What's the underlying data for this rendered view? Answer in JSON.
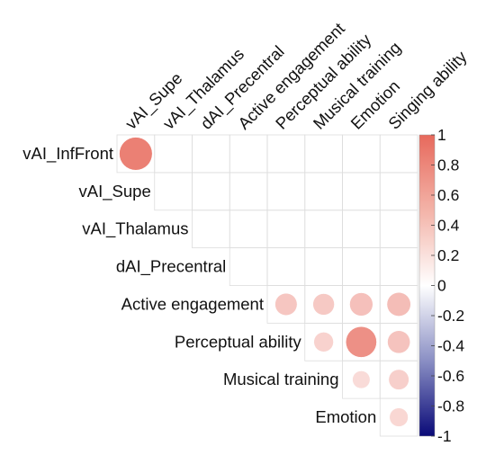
{
  "chart_data": {
    "type": "heatmap",
    "style": "corrplot-circle-upper-triangular",
    "row_labels": [
      "vAI_InfFront",
      "vAI_Supe",
      "vAI_Thalamus",
      "dAI_Precentral",
      "Active engagement",
      "Perceptual ability",
      "Musical training",
      "Emotion"
    ],
    "col_labels": [
      "vAI_Supe",
      "vAI_Thalamus",
      "dAI_Precentral",
      "Active engagement",
      "Perceptual ability",
      "Musical training",
      "Emotion",
      "Singing ability"
    ],
    "cells": [
      {
        "row": "vAI_InfFront",
        "col": "vAI_Supe",
        "value": 0.85
      },
      {
        "row": "Active engagement",
        "col": "Perceptual ability",
        "value": 0.38
      },
      {
        "row": "Active engagement",
        "col": "Musical training",
        "value": 0.36
      },
      {
        "row": "Active engagement",
        "col": "Emotion",
        "value": 0.42
      },
      {
        "row": "Active engagement",
        "col": "Singing ability",
        "value": 0.44
      },
      {
        "row": "Perceptual ability",
        "col": "Musical training",
        "value": 0.3
      },
      {
        "row": "Perceptual ability",
        "col": "Emotion",
        "value": 0.74
      },
      {
        "row": "Perceptual ability",
        "col": "Singing ability",
        "value": 0.4
      },
      {
        "row": "Musical training",
        "col": "Emotion",
        "value": 0.24
      },
      {
        "row": "Musical training",
        "col": "Singing ability",
        "value": 0.32
      },
      {
        "row": "Emotion",
        "col": "Singing ability",
        "value": 0.27
      }
    ],
    "colorbar": {
      "range": [
        -1,
        1
      ],
      "ticks": [
        "1",
        "0.8",
        "0.6",
        "0.4",
        "0.2",
        "0",
        "-0.2",
        "-0.4",
        "-0.6",
        "-0.8",
        "-1"
      ],
      "low_color": "#053061",
      "mid_color": "#ffffff",
      "high_color": "#e7695c"
    }
  }
}
